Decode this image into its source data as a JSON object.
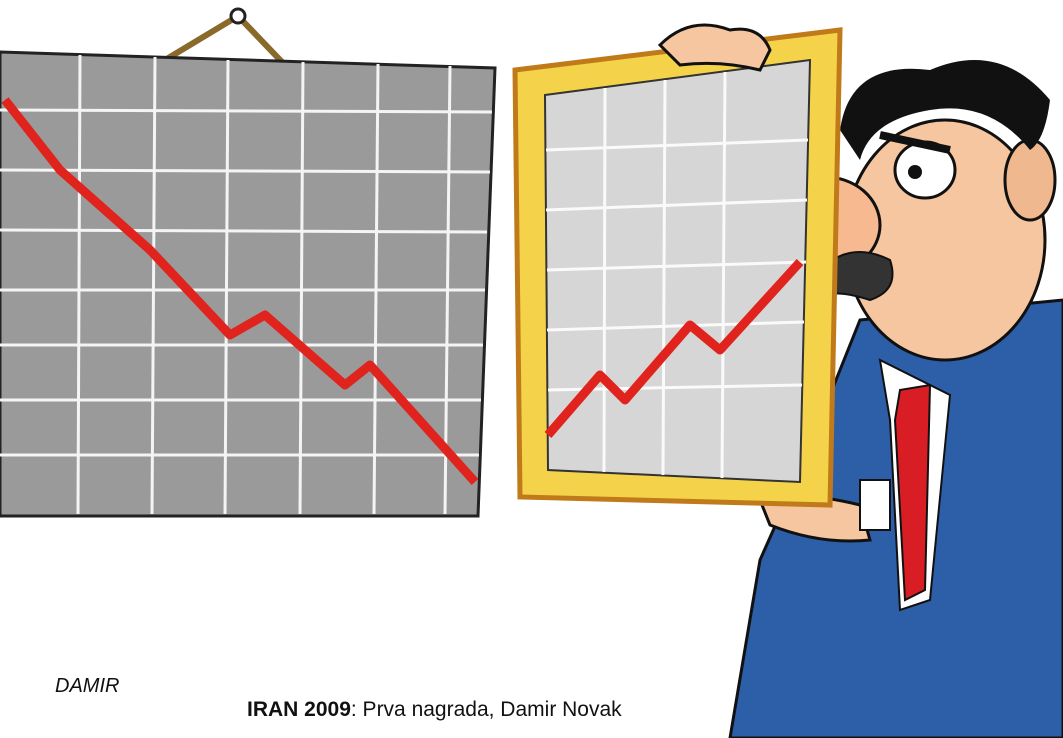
{
  "signature": "DAMIR",
  "caption": {
    "bold": "IRAN 2009",
    "rest": ": Prva nagrada, Damir Novak"
  }
}
